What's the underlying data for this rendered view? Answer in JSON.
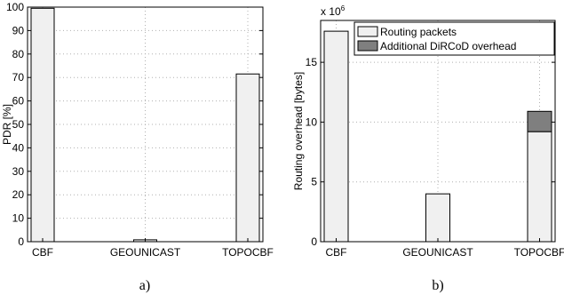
{
  "chart_data": [
    {
      "type": "bar",
      "categories": [
        "CBF",
        "GEOUNICAST",
        "TOPOCBF"
      ],
      "values": [
        99.5,
        0.8,
        71.5
      ],
      "ylabel": "PDR [%]",
      "ylim": [
        0,
        100
      ],
      "yticks": [
        0,
        10,
        20,
        30,
        40,
        50,
        60,
        70,
        80,
        90,
        100
      ],
      "grid": true,
      "caption": "a)",
      "colors": {
        "bar": "#f0f0f0"
      }
    },
    {
      "type": "bar",
      "stacked": true,
      "categories": [
        "CBF",
        "GEOUNICAST",
        "TOPOCBF"
      ],
      "series": [
        {
          "name": "Routing packets",
          "values": [
            17.6,
            4.0,
            9.2
          ],
          "color": "#f0f0f0"
        },
        {
          "name": "Additional DiRCoD overhead",
          "values": [
            0,
            0,
            1.7
          ],
          "color": "#7f7f7f"
        }
      ],
      "ylabel": "Routing overhead [bytes]",
      "ylim": [
        0,
        18.5
      ],
      "yticks": [
        0,
        5,
        10,
        15
      ],
      "y_multiplier": "x 10",
      "y_multiplier_exp": "6",
      "legend_position": "top-right",
      "grid": true,
      "caption": "b)"
    }
  ]
}
